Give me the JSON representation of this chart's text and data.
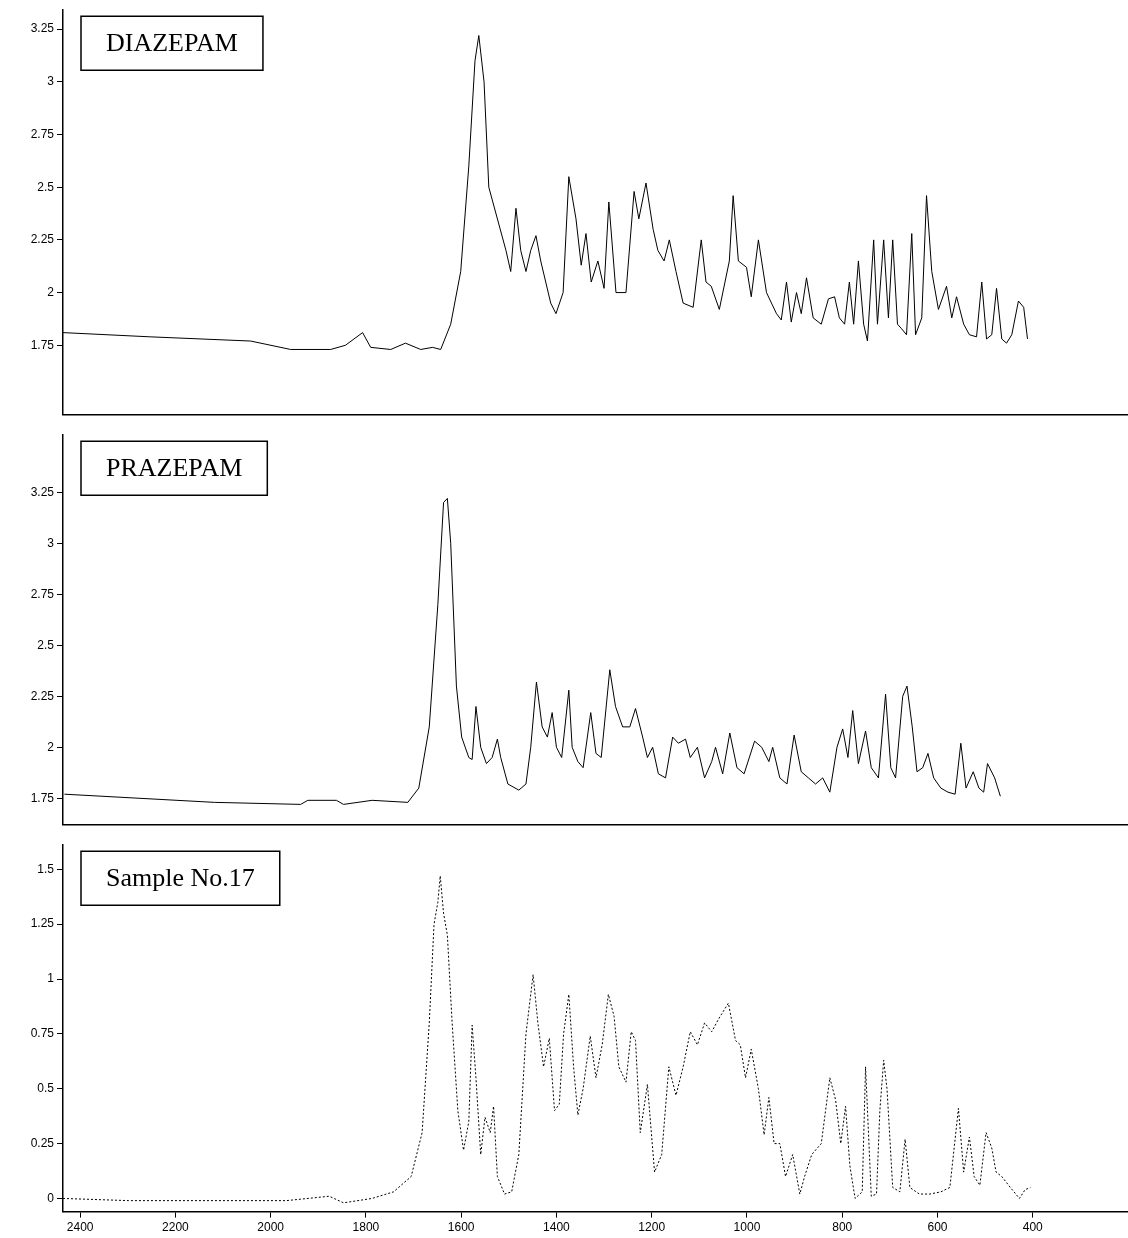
{
  "chart_data": [
    {
      "type": "line",
      "title": "DIAZEPAM",
      "xlim": [
        2436,
        200
      ],
      "xticks": [
        2400,
        2200,
        2000,
        1800,
        1600,
        1400,
        1200,
        1000,
        800,
        600,
        400
      ],
      "ylim": [
        1.42,
        3.34
      ],
      "yticks": [
        1.75,
        2,
        2.25,
        2.5,
        2.75,
        3,
        3.25
      ],
      "tick_labels": "y",
      "grid": false,
      "marker": "none",
      "line_style": "solid",
      "series": [
        {
          "color": "#000000",
          "x": [
            2436,
            2253,
            2042,
            1958,
            1874,
            1843,
            1807,
            1790,
            1748,
            1717,
            1685,
            1660,
            1643,
            1622,
            1601,
            1584,
            1571,
            1563,
            1552,
            1542,
            1506,
            1496,
            1485,
            1475,
            1464,
            1454,
            1443,
            1433,
            1412,
            1401,
            1386,
            1374,
            1359,
            1348,
            1338,
            1327,
            1313,
            1300,
            1290,
            1275,
            1254,
            1237,
            1227,
            1212,
            1197,
            1187,
            1174,
            1163,
            1149,
            1134,
            1113,
            1096,
            1086,
            1075,
            1058,
            1037,
            1029,
            1018,
            1001,
            991,
            976,
            959,
            938,
            928,
            917,
            907,
            896,
            886,
            875,
            861,
            844,
            829,
            816,
            806,
            795,
            785,
            776,
            766,
            755,
            747,
            734,
            726,
            713,
            703,
            694,
            684,
            676,
            665,
            654,
            646,
            633,
            623,
            612,
            598,
            581,
            570,
            560,
            545,
            533,
            518,
            507,
            497,
            486,
            476,
            465,
            455,
            444,
            430,
            419,
            411
          ],
          "values": [
            1.81,
            1.79,
            1.77,
            1.73,
            1.73,
            1.75,
            1.81,
            1.74,
            1.73,
            1.76,
            1.73,
            1.74,
            1.73,
            1.85,
            2.1,
            2.6,
            3.1,
            3.22,
            3.0,
            2.5,
            2.2,
            2.1,
            2.4,
            2.2,
            2.1,
            2.2,
            2.27,
            2.15,
            1.95,
            1.9,
            2.0,
            2.55,
            2.35,
            2.13,
            2.28,
            2.05,
            2.15,
            2.02,
            2.43,
            2.0,
            2.0,
            2.48,
            2.35,
            2.52,
            2.3,
            2.2,
            2.15,
            2.25,
            2.1,
            1.95,
            1.93,
            2.25,
            2.05,
            2.03,
            1.92,
            2.15,
            2.46,
            2.15,
            2.12,
            1.98,
            2.25,
            2.0,
            1.9,
            1.87,
            2.05,
            1.86,
            2.0,
            1.9,
            2.07,
            1.88,
            1.85,
            1.97,
            1.98,
            1.88,
            1.85,
            2.05,
            1.85,
            2.15,
            1.85,
            1.77,
            2.25,
            1.85,
            2.25,
            1.88,
            2.25,
            1.85,
            1.83,
            1.8,
            2.28,
            1.8,
            1.88,
            2.46,
            2.1,
            1.92,
            2.03,
            1.88,
            1.98,
            1.85,
            1.8,
            1.79,
            2.05,
            1.78,
            1.8,
            2.02,
            1.78,
            1.76,
            1.8,
            1.96,
            1.93,
            1.78
          ]
        }
      ]
    },
    {
      "type": "line",
      "title": "PRAZEPAM",
      "xlim": [
        2436,
        200
      ],
      "xticks": [
        2400,
        2200,
        2000,
        1800,
        1600,
        1400,
        1200,
        1000,
        800,
        600,
        400
      ],
      "ylim": [
        1.62,
        3.53
      ],
      "yticks": [
        1.75,
        2,
        2.25,
        2.5,
        2.75,
        3,
        3.25
      ],
      "tick_labels": "y",
      "grid": false,
      "marker": "none",
      "line_style": "solid",
      "series": [
        {
          "color": "#000000",
          "x": [
            2433,
            2118,
            1937,
            1922,
            1862,
            1847,
            1787,
            1712,
            1689,
            1667,
            1649,
            1637,
            1629,
            1622,
            1610,
            1599,
            1584,
            1577,
            1569,
            1559,
            1547,
            1535,
            1524,
            1517,
            1502,
            1479,
            1464,
            1454,
            1442,
            1430,
            1419,
            1409,
            1400,
            1389,
            1374,
            1367,
            1355,
            1344,
            1328,
            1317,
            1306,
            1288,
            1276,
            1261,
            1246,
            1234,
            1219,
            1209,
            1198,
            1186,
            1171,
            1156,
            1144,
            1129,
            1119,
            1104,
            1089,
            1074,
            1066,
            1051,
            1036,
            1021,
            1006,
            984,
            969,
            954,
            946,
            931,
            916,
            901,
            886,
            871,
            856,
            841,
            826,
            811,
            799,
            788,
            778,
            766,
            751,
            739,
            724,
            709,
            698,
            688,
            673,
            664,
            653,
            643,
            631,
            620,
            608,
            593,
            578,
            563,
            551,
            540,
            525,
            513,
            503,
            495,
            480,
            468
          ],
          "values": [
            1.77,
            1.73,
            1.72,
            1.74,
            1.74,
            1.72,
            1.74,
            1.73,
            1.8,
            2.1,
            2.7,
            3.2,
            3.22,
            3.0,
            2.3,
            2.05,
            1.95,
            1.94,
            2.2,
            2.0,
            1.92,
            1.95,
            2.04,
            1.95,
            1.82,
            1.79,
            1.82,
            2.0,
            2.32,
            2.1,
            2.05,
            2.17,
            2.0,
            1.95,
            2.28,
            2.0,
            1.93,
            1.9,
            2.17,
            1.97,
            1.95,
            2.38,
            2.2,
            2.1,
            2.1,
            2.19,
            2.05,
            1.95,
            2.0,
            1.87,
            1.85,
            2.05,
            2.02,
            2.04,
            1.95,
            2.0,
            1.85,
            1.93,
            2.0,
            1.87,
            2.07,
            1.9,
            1.87,
            2.03,
            2.0,
            1.93,
            2.0,
            1.85,
            1.82,
            2.06,
            1.88,
            1.85,
            1.82,
            1.85,
            1.78,
            2.0,
            2.09,
            1.95,
            2.18,
            1.92,
            2.08,
            1.9,
            1.85,
            2.26,
            1.9,
            1.85,
            2.25,
            2.3,
            2.1,
            1.88,
            1.9,
            1.97,
            1.85,
            1.8,
            1.78,
            1.77,
            2.02,
            1.8,
            1.88,
            1.8,
            1.78,
            1.92,
            1.85,
            1.76
          ]
        }
      ]
    },
    {
      "type": "line",
      "title": "Sample No.17",
      "xlim": [
        2436,
        200
      ],
      "xticks": [
        2400,
        2200,
        2000,
        1800,
        1600,
        1400,
        1200,
        1000,
        800,
        600,
        400
      ],
      "ylim": [
        -0.06,
        1.61
      ],
      "yticks": [
        0,
        0.25,
        0.5,
        0.75,
        1,
        1.25,
        1.5
      ],
      "grid": false,
      "marker": "none",
      "line_style": "dotted",
      "series": [
        {
          "color": "#000000",
          "x": [
            2436,
            2298,
            2118,
            1967,
            1877,
            1847,
            1787,
            1742,
            1705,
            1682,
            1667,
            1657,
            1649,
            1644,
            1637,
            1629,
            1619,
            1607,
            1595,
            1584,
            1577,
            1569,
            1559,
            1550,
            1539,
            1532,
            1524,
            1509,
            1494,
            1479,
            1464,
            1449,
            1439,
            1427,
            1415,
            1404,
            1394,
            1385,
            1374,
            1364,
            1355,
            1344,
            1329,
            1317,
            1304,
            1291,
            1279,
            1269,
            1254,
            1243,
            1234,
            1224,
            1209,
            1194,
            1179,
            1164,
            1149,
            1134,
            1119,
            1104,
            1089,
            1074,
            1059,
            1039,
            1024,
            1014,
            1003,
            991,
            976,
            964,
            954,
            943,
            931,
            919,
            904,
            889,
            879,
            864,
            844,
            826,
            814,
            803,
            793,
            784,
            773,
            758,
            751,
            739,
            728,
            721,
            713,
            706,
            694,
            679,
            668,
            658,
            638,
            616,
            593,
            574,
            556,
            545,
            533,
            523,
            511,
            498,
            486,
            477,
            465,
            447,
            428,
            416,
            405
          ],
          "values": [
            0,
            -0.01,
            -0.01,
            -0.01,
            0.01,
            -0.02,
            0,
            0.03,
            0.1,
            0.3,
            0.8,
            1.25,
            1.35,
            1.47,
            1.3,
            1.2,
            0.8,
            0.4,
            0.22,
            0.35,
            0.79,
            0.55,
            0.2,
            0.37,
            0.3,
            0.42,
            0.1,
            0.02,
            0.03,
            0.2,
            0.75,
            1.02,
            0.8,
            0.6,
            0.73,
            0.4,
            0.43,
            0.75,
            0.93,
            0.6,
            0.38,
            0.5,
            0.74,
            0.55,
            0.7,
            0.93,
            0.83,
            0.6,
            0.53,
            0.76,
            0.72,
            0.3,
            0.52,
            0.12,
            0.2,
            0.6,
            0.47,
            0.6,
            0.76,
            0.7,
            0.8,
            0.76,
            0.82,
            0.89,
            0.72,
            0.7,
            0.55,
            0.68,
            0.5,
            0.29,
            0.46,
            0.25,
            0.25,
            0.1,
            0.2,
            0.02,
            0.1,
            0.2,
            0.25,
            0.55,
            0.45,
            0.25,
            0.42,
            0.15,
            0,
            0.03,
            0.6,
            0.01,
            0.02,
            0.4,
            0.63,
            0.5,
            0.05,
            0.03,
            0.27,
            0.05,
            0.02,
            0.02,
            0.03,
            0.05,
            0.41,
            0.12,
            0.28,
            0.1,
            0.06,
            0.3,
            0.23,
            0.12,
            0.1,
            0.05,
            0,
            0.04,
            0.05
          ]
        }
      ]
    }
  ]
}
